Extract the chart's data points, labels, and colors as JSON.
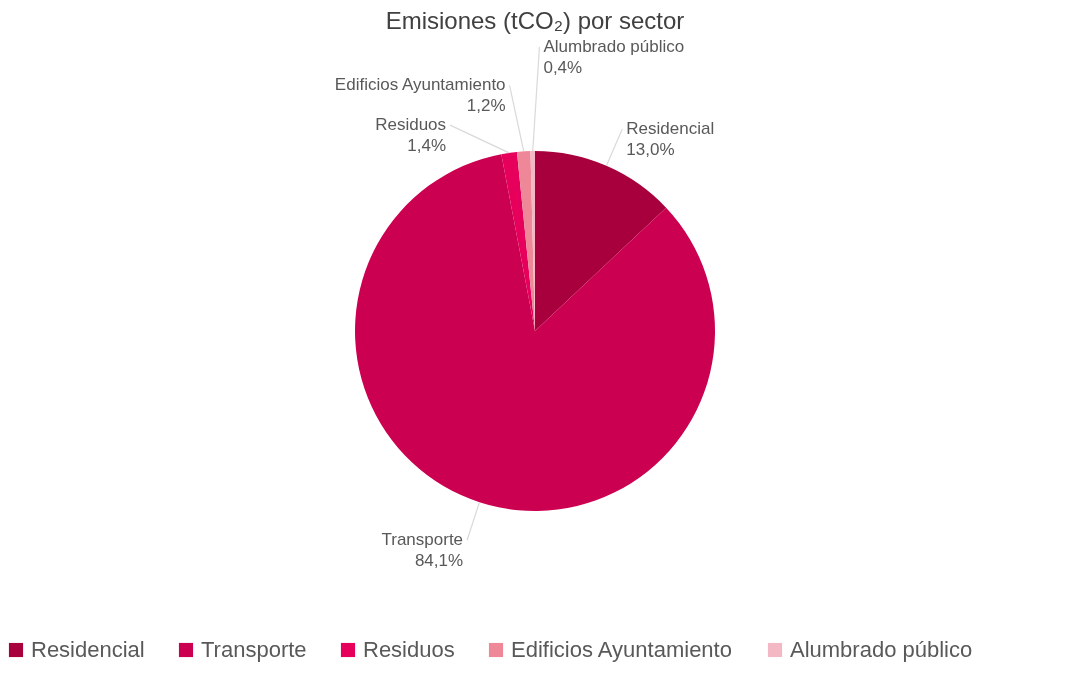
{
  "chart_data": {
    "type": "pie",
    "title": "Emisiones (tCO₂) por sector",
    "categories": [
      "Residencial",
      "Transporte",
      "Residuos",
      "Edificios Ayuntamiento",
      "Alumbrado público"
    ],
    "values": [
      13.0,
      84.1,
      1.4,
      1.2,
      0.4
    ],
    "value_labels": [
      "13,0%",
      "84,1%",
      "1,4%",
      "1,2%",
      "0,4%"
    ],
    "colors": [
      "#a8003c",
      "#cc0050",
      "#e6005c",
      "#ee8899",
      "#f4b8c4"
    ],
    "legend": "bottom"
  }
}
